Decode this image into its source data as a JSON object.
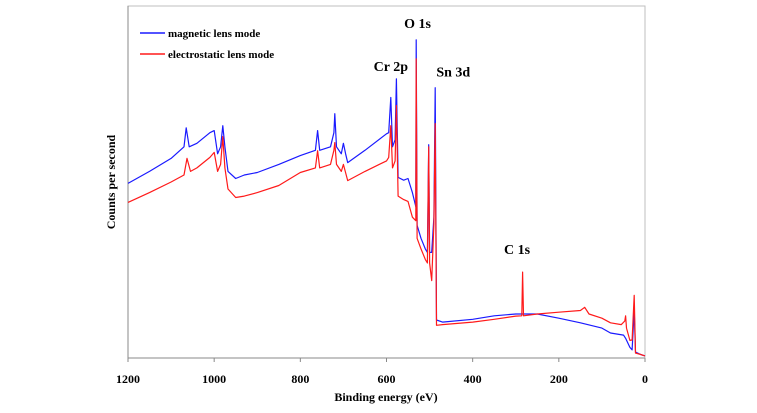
{
  "chart_data": {
    "type": "line",
    "title": "",
    "xlabel": "Binding energy (eV)",
    "ylabel": "Counts per second",
    "xlim": [
      1200,
      0
    ],
    "ylim": [
      0,
      100
    ],
    "x_reversed": true,
    "xticks": [
      1200,
      1000,
      800,
      600,
      400,
      200,
      0
    ],
    "yticks_shown": false,
    "grid": false,
    "legend_position": "top-left",
    "series": [
      {
        "name": "magnetic lens mode",
        "color": "#1a1aff",
        "points": [
          [
            1200,
            49.6
          ],
          [
            1150,
            53
          ],
          [
            1100,
            56.7
          ],
          [
            1070,
            60
          ],
          [
            1065,
            65.4
          ],
          [
            1058,
            60
          ],
          [
            1040,
            61
          ],
          [
            1010,
            64
          ],
          [
            1000,
            64.6
          ],
          [
            992,
            58
          ],
          [
            985,
            60
          ],
          [
            980,
            66
          ],
          [
            975,
            60
          ],
          [
            968,
            53
          ],
          [
            950,
            51
          ],
          [
            930,
            52
          ],
          [
            900,
            52.7
          ],
          [
            850,
            55
          ],
          [
            800,
            57.5
          ],
          [
            765,
            59
          ],
          [
            760,
            64.6
          ],
          [
            755,
            59
          ],
          [
            730,
            60
          ],
          [
            722,
            64
          ],
          [
            720,
            69.4
          ],
          [
            716,
            60
          ],
          [
            705,
            58
          ],
          [
            700,
            61
          ],
          [
            695,
            58
          ],
          [
            690,
            55.5
          ],
          [
            650,
            59
          ],
          [
            600,
            63.7
          ],
          [
            595,
            64
          ],
          [
            590,
            74
          ],
          [
            586,
            60
          ],
          [
            580,
            62
          ],
          [
            577,
            79.3
          ],
          [
            573,
            51.3
          ],
          [
            560,
            50.5
          ],
          [
            550,
            51
          ],
          [
            540,
            47
          ],
          [
            532,
            43
          ],
          [
            531,
            90.4
          ],
          [
            529,
            37.7
          ],
          [
            520,
            34
          ],
          [
            510,
            31
          ],
          [
            505,
            30
          ],
          [
            502,
            60.6
          ],
          [
            500,
            30
          ],
          [
            495,
            30
          ],
          [
            490,
            40
          ],
          [
            487,
            76.8
          ],
          [
            484,
            10.8
          ],
          [
            470,
            10.2
          ],
          [
            400,
            11
          ],
          [
            350,
            12
          ],
          [
            300,
            12.5
          ],
          [
            285,
            12.5
          ],
          [
            250,
            12.5
          ],
          [
            200,
            11.3
          ],
          [
            150,
            10
          ],
          [
            100,
            8.5
          ],
          [
            80,
            7.1
          ],
          [
            50,
            6.5
          ],
          [
            45,
            5.6
          ],
          [
            35,
            3
          ],
          [
            30,
            2.3
          ],
          [
            25,
            13.6
          ],
          [
            22,
            1.7
          ],
          [
            10,
            1
          ],
          [
            0,
            0.6
          ]
        ]
      },
      {
        "name": "electrostatic lens mode",
        "color": "#ff1a1a",
        "points": [
          [
            1200,
            44.2
          ],
          [
            1150,
            47
          ],
          [
            1100,
            50
          ],
          [
            1070,
            52
          ],
          [
            1063,
            56.7
          ],
          [
            1055,
            53
          ],
          [
            1040,
            54
          ],
          [
            1010,
            57
          ],
          [
            1000,
            58.4
          ],
          [
            992,
            53
          ],
          [
            985,
            55
          ],
          [
            980,
            62.9
          ],
          [
            975,
            54
          ],
          [
            968,
            48
          ],
          [
            950,
            45.6
          ],
          [
            930,
            46
          ],
          [
            900,
            47
          ],
          [
            850,
            49
          ],
          [
            800,
            52.7
          ],
          [
            765,
            54
          ],
          [
            760,
            58.9
          ],
          [
            755,
            54
          ],
          [
            730,
            55
          ],
          [
            722,
            59
          ],
          [
            720,
            61.2
          ],
          [
            716,
            55
          ],
          [
            705,
            53
          ],
          [
            700,
            55
          ],
          [
            690,
            50.4
          ],
          [
            650,
            53
          ],
          [
            600,
            56
          ],
          [
            595,
            57
          ],
          [
            590,
            66
          ],
          [
            586,
            54
          ],
          [
            580,
            56
          ],
          [
            577,
            71.7
          ],
          [
            573,
            46
          ],
          [
            560,
            45
          ],
          [
            550,
            44.5
          ],
          [
            540,
            40
          ],
          [
            532,
            39
          ],
          [
            531,
            85
          ],
          [
            529,
            34
          ],
          [
            520,
            31
          ],
          [
            510,
            28
          ],
          [
            505,
            27
          ],
          [
            502,
            60
          ],
          [
            500,
            27
          ],
          [
            495,
            22
          ],
          [
            490,
            38
          ],
          [
            487,
            66.6
          ],
          [
            484,
            9.3
          ],
          [
            470,
            9.5
          ],
          [
            400,
            10.2
          ],
          [
            350,
            11
          ],
          [
            300,
            11.9
          ],
          [
            286,
            12
          ],
          [
            284,
            24.4
          ],
          [
            282,
            12
          ],
          [
            250,
            12.5
          ],
          [
            200,
            13
          ],
          [
            150,
            13.5
          ],
          [
            140,
            14.4
          ],
          [
            130,
            12.5
          ],
          [
            100,
            11.3
          ],
          [
            80,
            10
          ],
          [
            55,
            9.5
          ],
          [
            47,
            10.5
          ],
          [
            45,
            12
          ],
          [
            43,
            8.5
          ],
          [
            35,
            5
          ],
          [
            30,
            5.1
          ],
          [
            25,
            17.8
          ],
          [
            22,
            1.4
          ],
          [
            10,
            1
          ],
          [
            0,
            0.6
          ]
        ]
      }
    ],
    "annotations": [
      {
        "text": "O 1s",
        "x": 528,
        "y": 93.8
      },
      {
        "text": "Cr 2p",
        "x": 590,
        "y": 81.6
      },
      {
        "text": "Sn 3d",
        "x": 445,
        "y": 80
      },
      {
        "text": "C 1s",
        "x": 297,
        "y": 29.5
      }
    ]
  }
}
